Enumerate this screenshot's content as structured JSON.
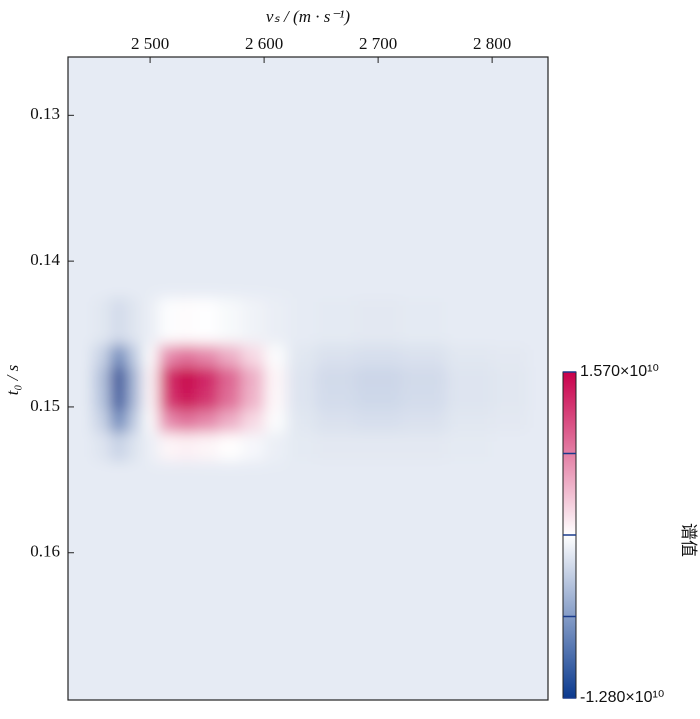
{
  "chart_data": {
    "type": "heatmap",
    "xlabel": "vₛ / (m · s⁻¹)",
    "ylabel": "t₀ / s",
    "colorbar_label": "谱值",
    "x": [
      2440,
      2460,
      2472,
      2485,
      2500,
      2515,
      2531,
      2550,
      2570,
      2590,
      2610,
      2630,
      2660,
      2700,
      2740,
      2780,
      2820,
      2845
    ],
    "y": [
      0.128,
      0.14,
      0.145,
      0.1465,
      0.148,
      0.1495,
      0.151,
      0.1525,
      0.155,
      0.165
    ],
    "z": [
      [
        0,
        0,
        0,
        0,
        0,
        0,
        0,
        0,
        0,
        0,
        0,
        0,
        0,
        0,
        0,
        0,
        0,
        0
      ],
      [
        0,
        0,
        0,
        0,
        0,
        0,
        0,
        0,
        0,
        0,
        0,
        0,
        0,
        0,
        0,
        0,
        0,
        0
      ],
      [
        0,
        -300000000.0,
        -1200000000.0,
        -400000000.0,
        200000000.0,
        1300000000.0,
        1600000000.0,
        1400000000.0,
        1000000000.0,
        600000000.0,
        200000000.0,
        0,
        -100000000.0,
        -200000000.0,
        -100000000.0,
        0,
        0,
        0
      ],
      [
        0,
        -1800000000.0,
        -7500000000.0,
        -2400000000.0,
        1200000000.0,
        7800000000.0,
        9300000000.0,
        8100000000.0,
        6000000000.0,
        3600000000.0,
        1200000000.0,
        -300000000.0,
        -700000000.0,
        -900000000.0,
        -700000000.0,
        -300000000.0,
        -200000000.0,
        0
      ],
      [
        0,
        -3000000000.0,
        -12500000000.0,
        -4000000000.0,
        2000000000.0,
        13000000000.0,
        15500000000.0,
        13500000000.0,
        10000000000.0,
        6000000000.0,
        2000000000.0,
        -500000000.0,
        -1200000000.0,
        -1500000000.0,
        -1200000000.0,
        -500000000.0,
        -300000000.0,
        0
      ],
      [
        0,
        -2800000000.0,
        -11900000000.0,
        -3800000000.0,
        1900000000.0,
        12400000000.0,
        14700000000.0,
        12800000000.0,
        9500000000.0,
        5700000000.0,
        1900000000.0,
        -500000000.0,
        -1100000000.0,
        -1400000000.0,
        -1100000000.0,
        -500000000.0,
        -300000000.0,
        0
      ],
      [
        0,
        -1800000000.0,
        -7500000000.0,
        -2400000000.0,
        1200000000.0,
        7800000000.0,
        9300000000.0,
        8100000000.0,
        6000000000.0,
        3600000000.0,
        1200000000.0,
        -300000000.0,
        -700000000.0,
        -900000000.0,
        -700000000.0,
        -300000000.0,
        -200000000.0,
        0
      ],
      [
        0,
        -500000000.0,
        -1900000000.0,
        -600000000.0,
        300000000.0,
        2000000000.0,
        2300000000.0,
        2000000000.0,
        1500000000.0,
        900000000.0,
        300000000.0,
        -100000000.0,
        -200000000.0,
        -200000000.0,
        -200000000.0,
        -100000000.0,
        0,
        0
      ],
      [
        0,
        0,
        0,
        0,
        0,
        0,
        0,
        0,
        0,
        0,
        0,
        0,
        0,
        0,
        0,
        0,
        0,
        0
      ],
      [
        0,
        0,
        0,
        0,
        0,
        0,
        0,
        0,
        0,
        0,
        0,
        0,
        0,
        0,
        0,
        0,
        0,
        0
      ]
    ],
    "xlim": [
      2428,
      2849
    ],
    "ylim": [
      0.1701,
      0.126
    ],
    "xticks": [
      {
        "value": 2500,
        "label": "2 500"
      },
      {
        "value": 2600,
        "label": "2 600"
      },
      {
        "value": 2700,
        "label": "2 700"
      },
      {
        "value": 2800,
        "label": "2 800"
      }
    ],
    "yticks": [
      0.13,
      0.14,
      0.15,
      0.16
    ],
    "zlim": [
      -12800000000.0,
      15700000000.0
    ],
    "zticks": [
      {
        "value": 15700000000.0,
        "label": "1.570×10¹⁰"
      },
      8575000000.0,
      1450000000.0,
      -5675000000.0,
      {
        "value": -12800000000.0,
        "label": "-1.280×10¹⁰"
      }
    ],
    "colors": [
      "#0b3a8f",
      "#ffffff",
      "#c8004b"
    ]
  }
}
